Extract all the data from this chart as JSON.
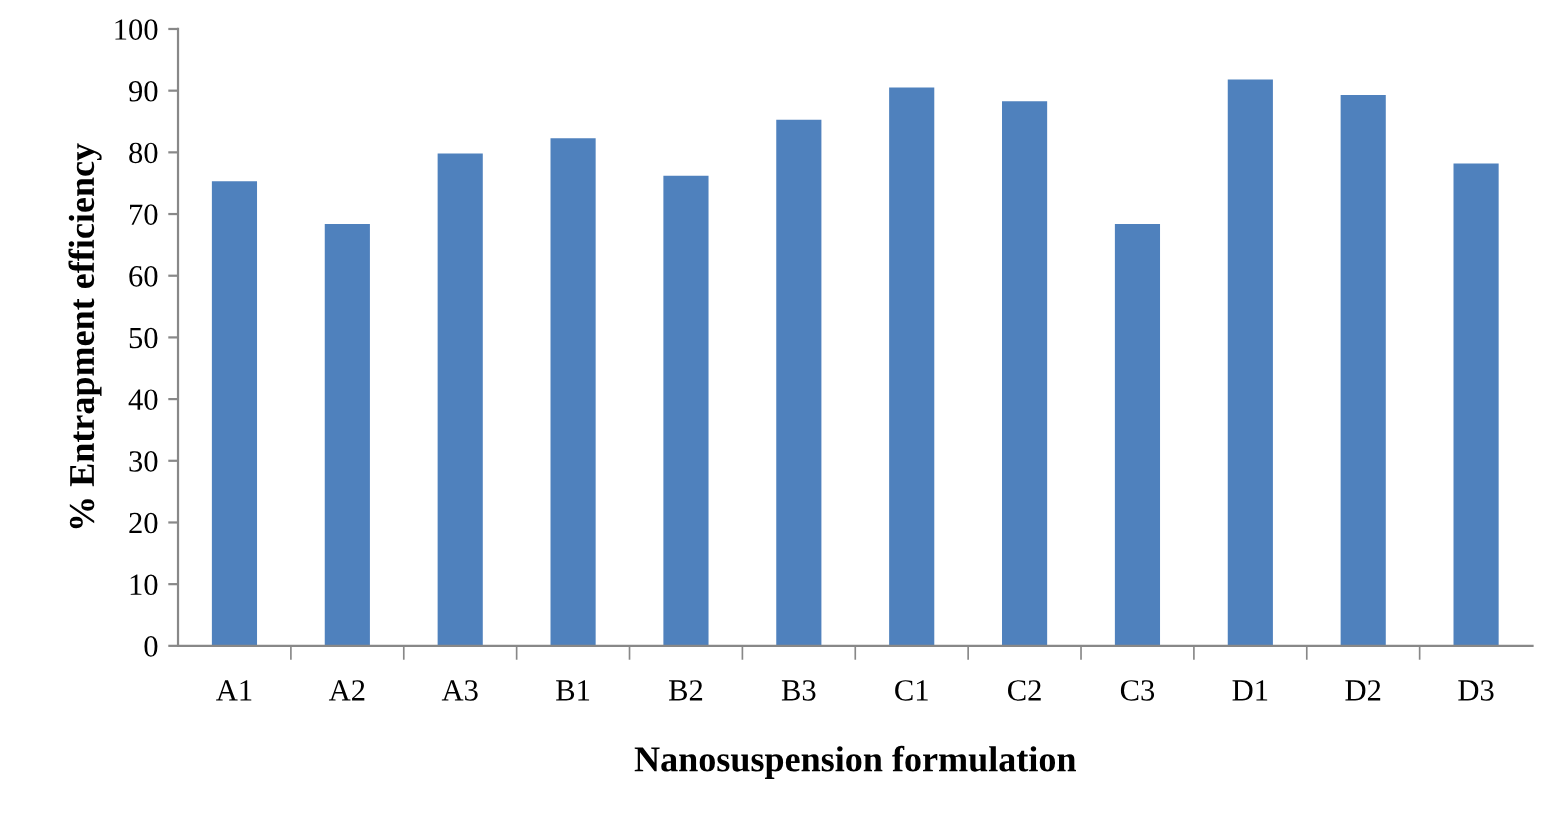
{
  "chart_data": {
    "type": "bar",
    "xlabel": "Nanosuspension formulation",
    "ylabel": "% Entrapment efficiency",
    "categories": [
      "A1",
      "A2",
      "A3",
      "B1",
      "B2",
      "B3",
      "C1",
      "C2",
      "C3",
      "D1",
      "D2",
      "D3"
    ],
    "values": [
      75.3,
      68.4,
      79.8,
      82.3,
      76.2,
      85.3,
      90.5,
      88.3,
      68.4,
      91.8,
      89.3,
      78.2
    ],
    "color": "#4f81bd",
    "ylim": [
      0,
      100
    ],
    "yticks": [
      0,
      10,
      20,
      30,
      40,
      50,
      60,
      70,
      80,
      90,
      100
    ],
    "grid": false
  }
}
